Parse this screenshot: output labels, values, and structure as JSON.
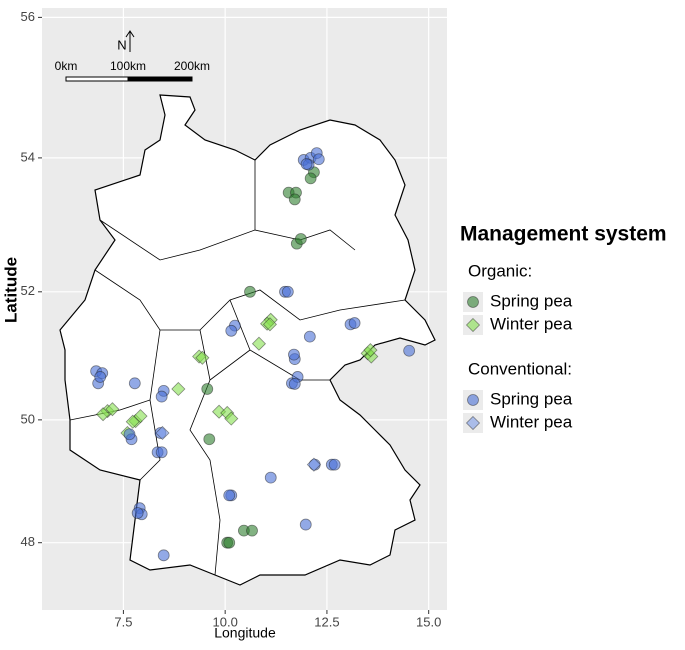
{
  "chart_data": {
    "type": "scatter",
    "projection": "mercator",
    "grid": true,
    "x_label": "Longitude",
    "y_label": "Latitude",
    "xlim": [
      5.5,
      15.45
    ],
    "ylim": [
      46.87,
      56.13
    ],
    "xticks": [
      7.5,
      {
        "value": 10,
        "label": "10.0"
      },
      12.5,
      {
        "value": 15,
        "label": "15.0"
      }
    ],
    "yticks": [
      48,
      50,
      52,
      54,
      56
    ],
    "north_arrow": "N",
    "scale_bar": [
      "0km",
      "100km",
      "200km"
    ],
    "legend_title": "Management system",
    "legend_groups": [
      "Organic:",
      "Conventional:"
    ],
    "series": [
      {
        "name": "Spring pea",
        "group": 0,
        "marker": "circle",
        "color": "#2f7f2f",
        "x": [
          12.18,
          12.1,
          11.56,
          11.74,
          11.71,
          11.76,
          11.86,
          10.61,
          9.56,
          9.61,
          10.46,
          10.66,
          10.05,
          10.1
        ],
        "y": [
          53.79,
          53.7,
          53.49,
          53.49,
          53.39,
          52.73,
          52.8,
          52.0,
          50.49,
          49.69,
          48.2,
          48.2,
          48.0,
          48.0
        ]
      },
      {
        "name": "Winter pea",
        "group": 0,
        "marker": "diamond",
        "color": "#86e04e",
        "x": [
          11.12,
          11.03,
          11.1,
          10.83,
          9.36,
          9.44,
          8.85,
          13.5,
          13.59,
          13.57,
          7.11,
          7.23,
          7.0,
          7.8,
          7.92,
          7.73,
          9.85,
          10.05,
          10.15,
          7.6
        ],
        "y": [
          51.57,
          51.51,
          51.5,
          51.2,
          51.0,
          50.98,
          50.49,
          51.05,
          51.0,
          51.1,
          50.14,
          50.17,
          50.09,
          49.98,
          50.06,
          49.97,
          50.13,
          50.11,
          50.02,
          49.79
        ]
      },
      {
        "name": "Spring pea",
        "group": 1,
        "marker": "circle",
        "color": "#4a6fd6",
        "x": [
          11.93,
          12.1,
          12.25,
          12.3,
          12.05,
          12.0,
          11.47,
          11.54,
          12.08,
          13.08,
          13.18,
          11.71,
          11.69,
          11.64,
          11.78,
          11.71,
          10.24,
          10.15,
          14.52,
          6.83,
          6.98,
          6.88,
          6.93,
          7.78,
          8.49,
          8.44,
          7.7,
          7.65,
          8.41,
          8.34,
          8.44,
          11.12,
          12.2,
          12.62,
          12.69,
          10.15,
          10.1,
          7.9,
          7.95,
          7.85,
          11.98,
          8.49
        ],
        "y": [
          53.97,
          54.0,
          54.07,
          53.98,
          53.9,
          53.91,
          52.0,
          52.0,
          51.31,
          51.5,
          51.52,
          50.96,
          51.03,
          50.58,
          50.68,
          50.57,
          51.48,
          51.4,
          51.09,
          50.77,
          50.74,
          50.58,
          50.68,
          50.58,
          50.46,
          50.37,
          49.69,
          49.77,
          49.79,
          49.48,
          49.48,
          49.07,
          49.28,
          49.28,
          49.28,
          48.78,
          48.78,
          48.57,
          48.47,
          48.49,
          48.3,
          47.79
        ]
      },
      {
        "name": "Winter pea",
        "group": 1,
        "marker": "diamond",
        "color": "#7f9de8",
        "x": [
          8.46,
          12.18
        ],
        "y": [
          49.79,
          49.28
        ]
      }
    ]
  }
}
